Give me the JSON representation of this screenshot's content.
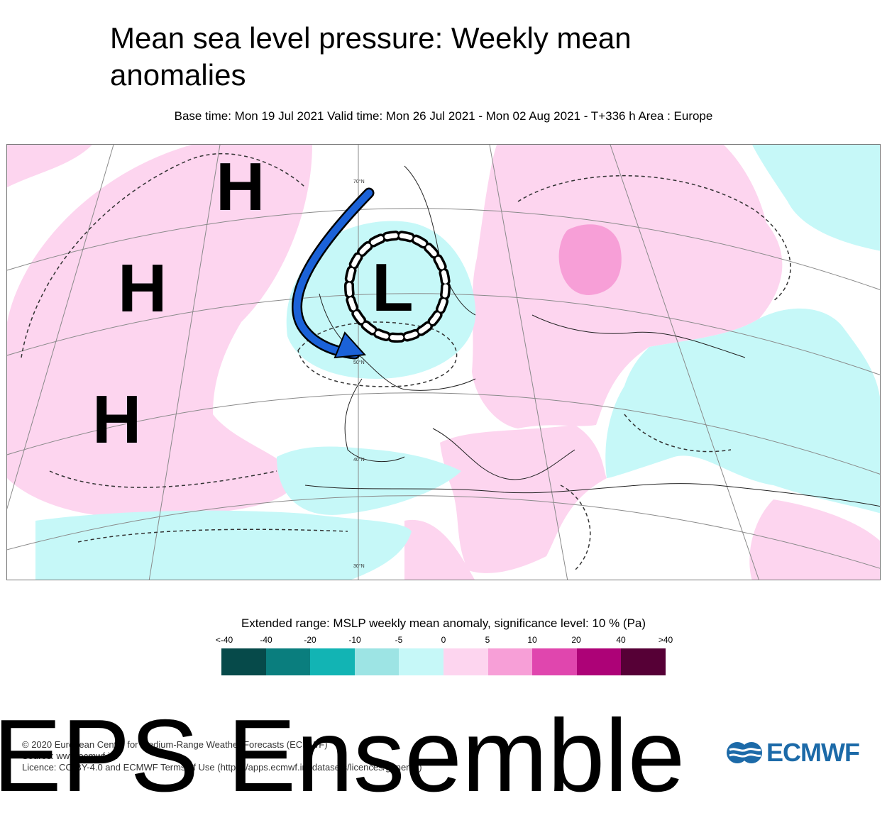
{
  "title": "Mean sea level pressure: Weekly mean anomalies",
  "subtitle": "Base time: Mon 19 Jul 2021 Valid time: Mon 26 Jul 2021 - Mon 02 Aug 2021 - T+336 h Area : Europe",
  "map": {
    "markers": [
      "H",
      "H",
      "H",
      "L"
    ],
    "latitude_labels": [
      "70°N",
      "50°N",
      "40°N",
      "30°N"
    ],
    "colors": {
      "positive_light": "#fdd5ef",
      "positive_mid": "#f79fd7",
      "negative_light": "#c6f8f8",
      "arrow": "#1b62d8"
    }
  },
  "legend": {
    "title": "Extended range: MSLP weekly mean anomaly, significance level: 10 % (Pa)",
    "ticks": [
      "<-40",
      "-40",
      "-20",
      "-10",
      "-5",
      "0",
      "5",
      "10",
      "20",
      "40",
      ">40"
    ],
    "colors": [
      "#064a4a",
      "#0a7e7e",
      "#12b4b4",
      "#9de4e4",
      "#c6f8f8",
      "#fdd5ef",
      "#f79fd7",
      "#e046ae",
      "#ad0277",
      "#560036"
    ]
  },
  "credits": [
    "© 2020 European Centre for Medium-Range Weather Forecasts (ECMWF)",
    "Source: www.ecmwf.int",
    "Licence: CC-BY-4.0 and ECMWF Terms of Use (https://apps.ecmwf.int/datasets/licences/general/)"
  ],
  "banner": "EPS Ensemble",
  "logo_text": "ECMWF"
}
